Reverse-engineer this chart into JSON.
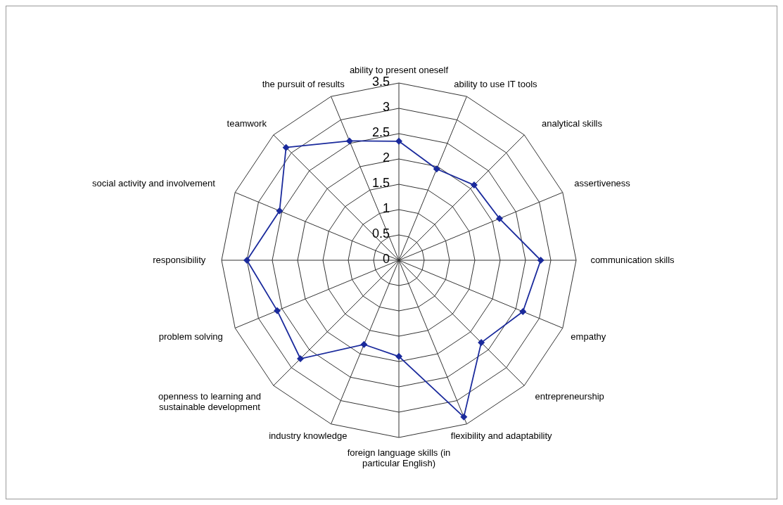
{
  "chart_data": {
    "type": "radar",
    "categories": [
      "ability to present oneself",
      "ability to use IT tools",
      "analytical skills",
      "assertiveness",
      "communication skills",
      "empathy",
      "entrepreneurship",
      "flexibility and adaptability",
      "foreign language skills (in particular English)",
      "industry knowledge",
      "openness to learning and sustainable development",
      "problem solving",
      "responsibility",
      "social activity and involvement",
      "teamwork",
      "the pursuit of results"
    ],
    "series": [
      {
        "color": "#1a2a9c",
        "values": [
          2.35,
          1.95,
          2.1,
          2.15,
          2.8,
          2.65,
          2.3,
          3.35,
          1.9,
          1.8,
          2.75,
          2.6,
          3.0,
          2.55,
          3.15,
          2.55
        ]
      }
    ],
    "ylim": [
      0,
      3.5
    ],
    "yticks": [
      0,
      0.5,
      1,
      1.5,
      2,
      2.5,
      3,
      3.5
    ],
    "marker": "diamond",
    "grid": true,
    "legend": false
  }
}
